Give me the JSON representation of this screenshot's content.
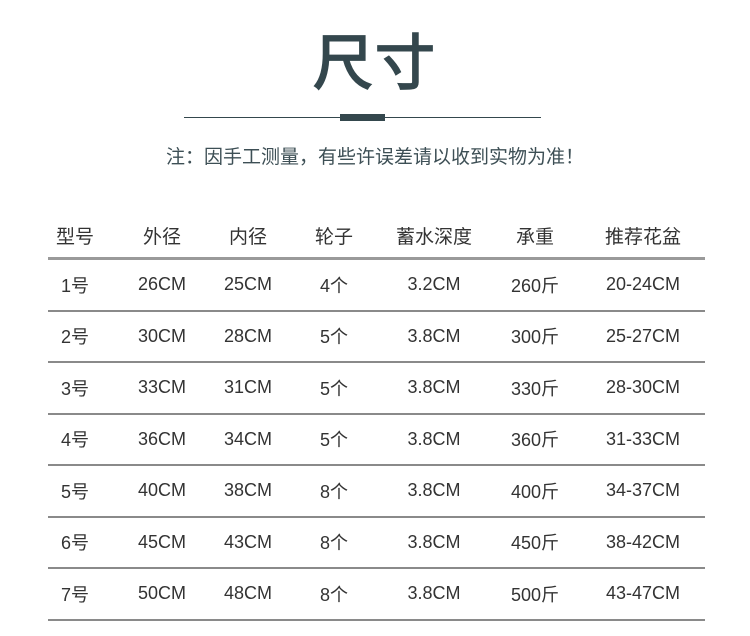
{
  "title": "尺寸",
  "note": "注：因手工测量，有些许误差请以收到实物为准！",
  "colors": {
    "accent": "#34474d",
    "rule": "#8a8a8a"
  },
  "table": {
    "headers": [
      "型号",
      "外径",
      "内径",
      "轮子",
      "蓄水深度",
      "承重",
      "推荐花盆"
    ],
    "rows": [
      [
        "1号",
        "26CM",
        "25CM",
        "4个",
        "3.2CM",
        "260斤",
        "20-24CM"
      ],
      [
        "2号",
        "30CM",
        "28CM",
        "5个",
        "3.8CM",
        "300斤",
        "25-27CM"
      ],
      [
        "3号",
        "33CM",
        "31CM",
        "5个",
        "3.8CM",
        "330斤",
        "28-30CM"
      ],
      [
        "4号",
        "36CM",
        "34CM",
        "5个",
        "3.8CM",
        "360斤",
        "31-33CM"
      ],
      [
        "5号",
        "40CM",
        "38CM",
        "8个",
        "3.8CM",
        "400斤",
        "34-37CM"
      ],
      [
        "6号",
        "45CM",
        "43CM",
        "8个",
        "3.8CM",
        "450斤",
        "38-42CM"
      ],
      [
        "7号",
        "50CM",
        "48CM",
        "8个",
        "3.8CM",
        "500斤",
        "43-47CM"
      ]
    ]
  }
}
